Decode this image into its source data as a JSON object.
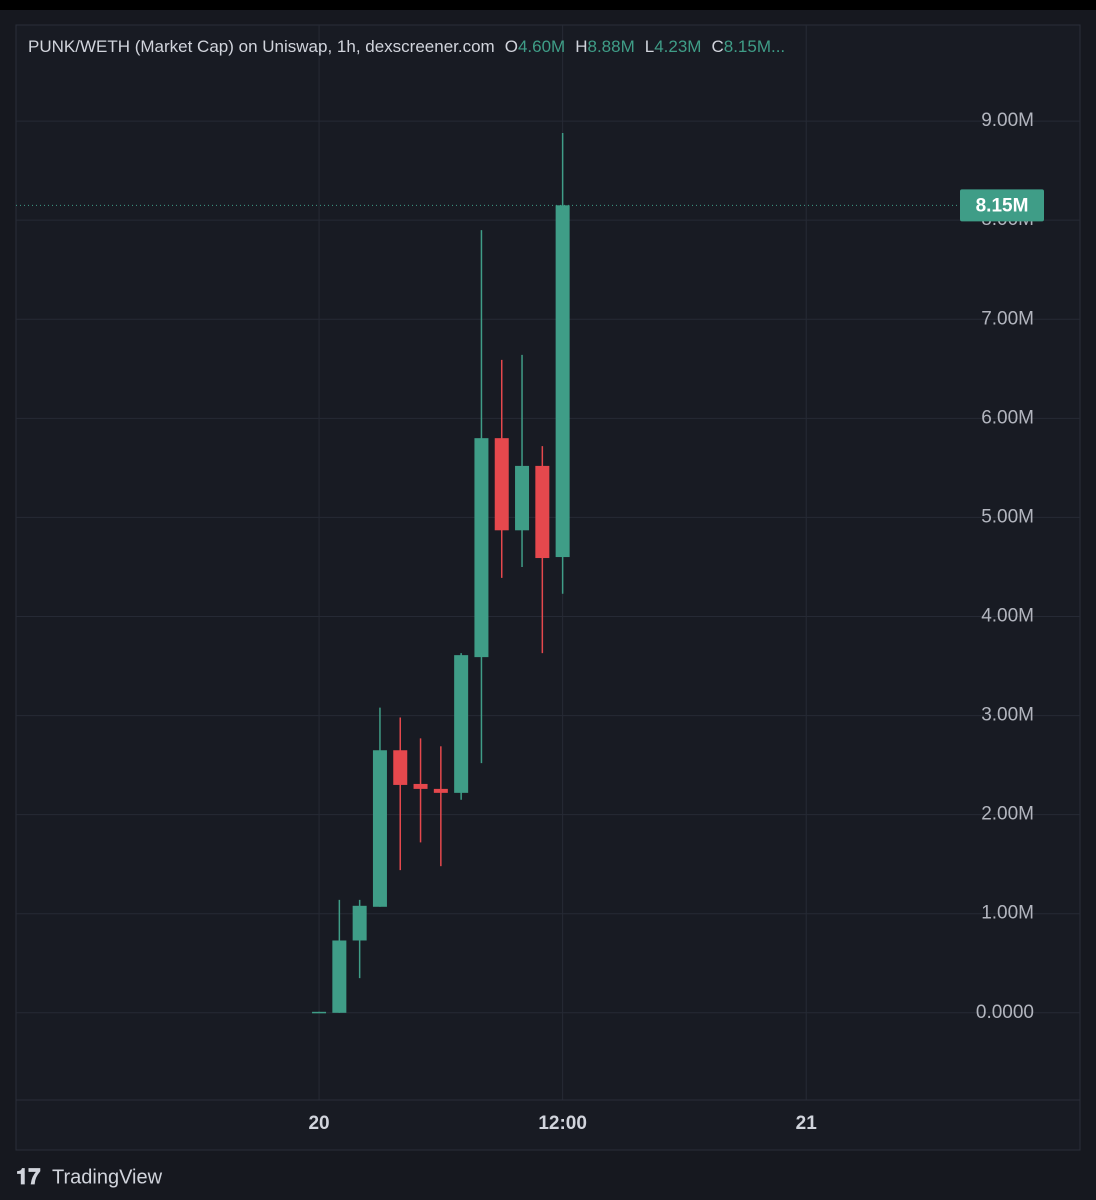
{
  "chart_data": {
    "type": "candlestick",
    "title": "PUNK/WETH (Market Cap) on Uniswap, 1h, dexscreener.com",
    "legend": [
      {
        "key": "O",
        "label": "4.60M"
      },
      {
        "key": "H",
        "label": "8.88M"
      },
      {
        "key": "L",
        "label": "4.23M"
      },
      {
        "key": "C",
        "label": "8.15M..."
      }
    ],
    "x": [
      0,
      1,
      2,
      3,
      4,
      5,
      6,
      7,
      8,
      9,
      10,
      11,
      12
    ],
    "open": [
      0,
      0,
      730000,
      1070000,
      2650000,
      2310000,
      2260000,
      2220000,
      3590000,
      5800000,
      4870000,
      5520000,
      4600000
    ],
    "high": [
      10000,
      1140000,
      1140000,
      3080000,
      2980000,
      2770000,
      2690000,
      3630000,
      7900000,
      6590000,
      6640000,
      5720000,
      8880000
    ],
    "low": [
      0,
      0,
      350000,
      1070000,
      1440000,
      1720000,
      1480000,
      2150000,
      2520000,
      4390000,
      4500000,
      3630000,
      4230000
    ],
    "close": [
      10000,
      730000,
      1080000,
      2650000,
      2300000,
      2260000,
      2220000,
      3610000,
      5800000,
      4870000,
      5520000,
      4590000,
      8150000
    ],
    "up_color": "#3f9d87",
    "down_color": "#e5484d",
    "last_price": {
      "value": 8150000,
      "label": "8.15M"
    },
    "xlim": [
      -14.93,
      31.33
    ],
    "xticks": [
      {
        "value": 0,
        "label": "20"
      },
      {
        "value": 12,
        "label": "12:00"
      },
      {
        "value": 24,
        "label": "21"
      }
    ],
    "ylim": [
      -880000,
      9970000
    ],
    "yticks": [
      {
        "value": 0,
        "label": "0.0000"
      },
      {
        "value": 1000000,
        "label": "1.00M"
      },
      {
        "value": 2000000,
        "label": "2.00M"
      },
      {
        "value": 3000000,
        "label": "3.00M"
      },
      {
        "value": 4000000,
        "label": "4.00M"
      },
      {
        "value": 5000000,
        "label": "5.00M"
      },
      {
        "value": 6000000,
        "label": "6.00M"
      },
      {
        "value": 7000000,
        "label": "7.00M"
      },
      {
        "value": 8000000,
        "label": "8.00M"
      },
      {
        "value": 9000000,
        "label": "9.00M"
      }
    ],
    "grid": true
  },
  "branding": "TradingView"
}
